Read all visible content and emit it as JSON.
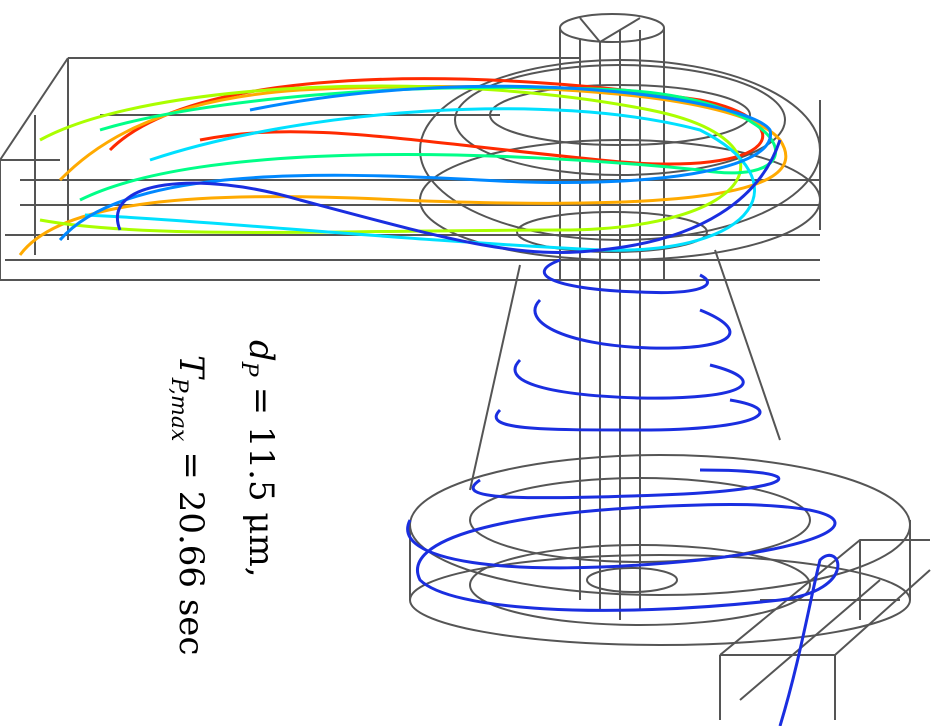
{
  "annotation": {
    "lines": [
      {
        "symbol": "d",
        "subscript": "P",
        "text": "= 11.5 μm,"
      },
      {
        "symbol": "T",
        "subscript": "P,max",
        "text": "= 20.66 sec"
      }
    ]
  }
}
